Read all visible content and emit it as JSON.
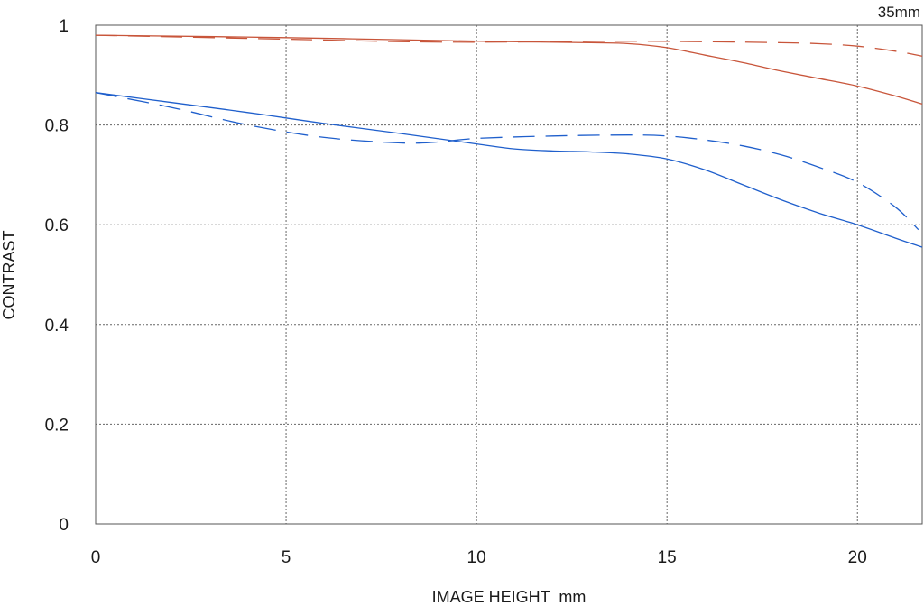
{
  "chart_data": {
    "type": "line",
    "title": "",
    "corner_label": "35mm",
    "xlabel": "IMAGE HEIGHT  mm",
    "ylabel": "CONTRAST",
    "xlim": [
      0,
      21.7
    ],
    "ylim": [
      0,
      1
    ],
    "x_ticks": [
      "0",
      "5",
      "10",
      "15",
      "20"
    ],
    "y_ticks": [
      "0",
      "0.2",
      "0.4",
      "0.6",
      "0.8",
      "1"
    ],
    "grid": true,
    "legend": "none",
    "series": [
      {
        "color": "#c8553a",
        "style": "solid",
        "points": [
          [
            0,
            0.98
          ],
          [
            5,
            0.975
          ],
          [
            10,
            0.968
          ],
          [
            13,
            0.965
          ],
          [
            14,
            0.963
          ],
          [
            15,
            0.955
          ],
          [
            16,
            0.94
          ],
          [
            17,
            0.925
          ],
          [
            18,
            0.908
          ],
          [
            19,
            0.893
          ],
          [
            20,
            0.878
          ],
          [
            21,
            0.858
          ],
          [
            21.7,
            0.842
          ]
        ]
      },
      {
        "color": "#c8553a",
        "style": "dashed",
        "points": [
          [
            0,
            0.98
          ],
          [
            5,
            0.972
          ],
          [
            8,
            0.967
          ],
          [
            10,
            0.966
          ],
          [
            12,
            0.967
          ],
          [
            14,
            0.968
          ],
          [
            16,
            0.967
          ],
          [
            18,
            0.965
          ],
          [
            19,
            0.963
          ],
          [
            20,
            0.958
          ],
          [
            21,
            0.948
          ],
          [
            21.7,
            0.938
          ]
        ]
      },
      {
        "color": "#1f5fcc",
        "style": "solid",
        "points": [
          [
            0,
            0.865
          ],
          [
            2,
            0.845
          ],
          [
            4,
            0.825
          ],
          [
            6,
            0.803
          ],
          [
            8,
            0.783
          ],
          [
            10,
            0.762
          ],
          [
            11,
            0.752
          ],
          [
            12,
            0.748
          ],
          [
            13,
            0.746
          ],
          [
            14,
            0.742
          ],
          [
            15,
            0.732
          ],
          [
            16,
            0.71
          ],
          [
            17,
            0.68
          ],
          [
            18,
            0.65
          ],
          [
            19,
            0.623
          ],
          [
            20,
            0.6
          ],
          [
            21,
            0.573
          ],
          [
            21.7,
            0.555
          ]
        ]
      },
      {
        "color": "#1f5fcc",
        "style": "dashed",
        "points": [
          [
            0,
            0.865
          ],
          [
            2,
            0.835
          ],
          [
            4,
            0.8
          ],
          [
            6,
            0.775
          ],
          [
            8,
            0.764
          ],
          [
            9,
            0.766
          ],
          [
            10,
            0.773
          ],
          [
            12,
            0.778
          ],
          [
            14,
            0.78
          ],
          [
            15,
            0.778
          ],
          [
            16,
            0.77
          ],
          [
            17,
            0.758
          ],
          [
            18,
            0.74
          ],
          [
            19,
            0.715
          ],
          [
            20,
            0.685
          ],
          [
            21,
            0.635
          ],
          [
            21.6,
            0.59
          ]
        ]
      }
    ]
  }
}
